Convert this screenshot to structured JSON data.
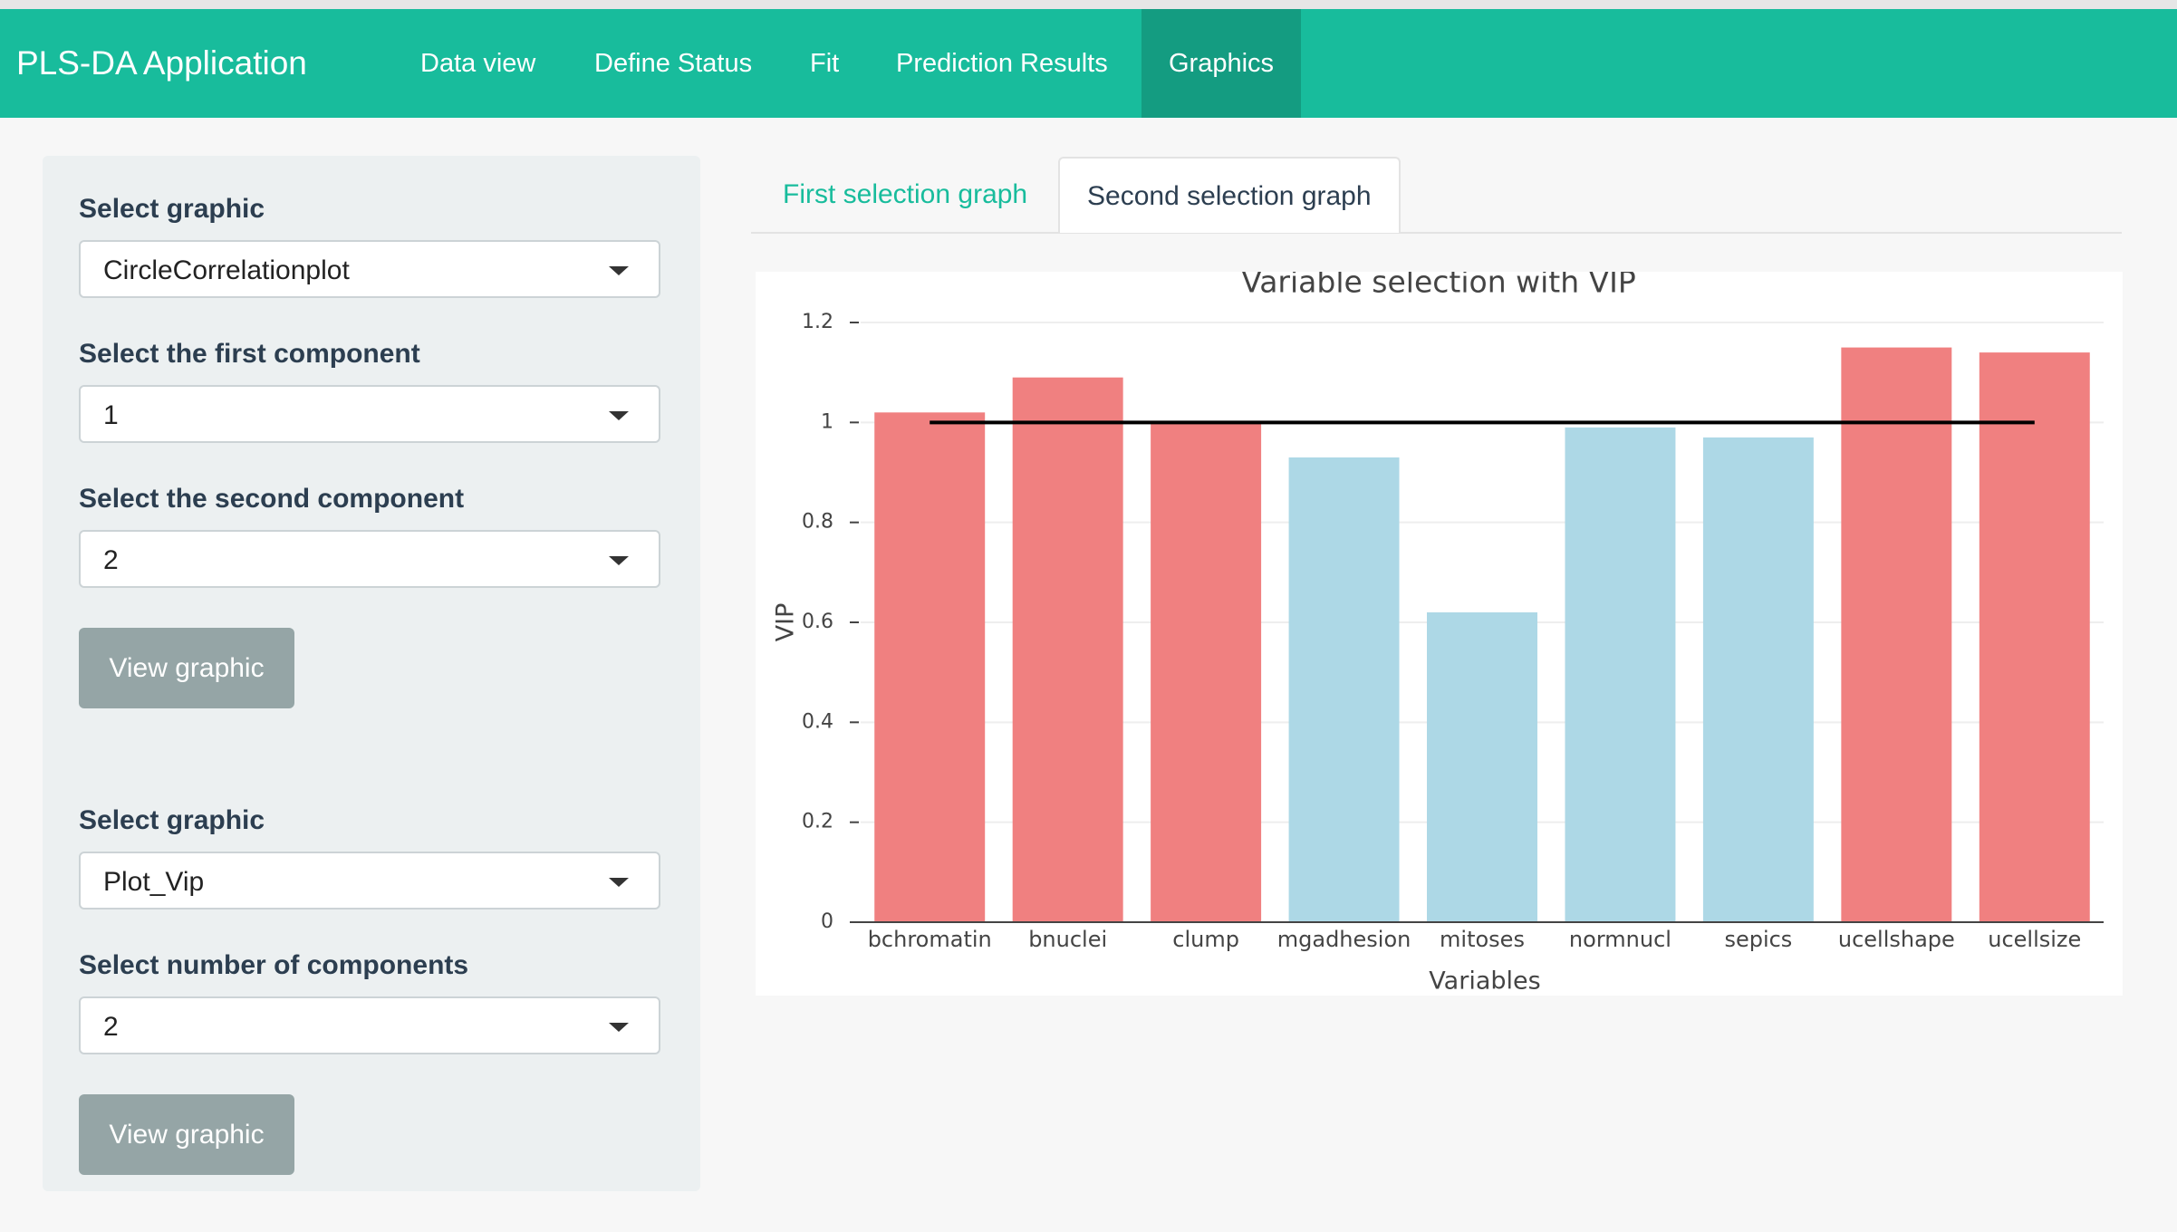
{
  "navbar": {
    "brand": "PLS-DA Application",
    "items": [
      "Data view",
      "Define Status",
      "Fit",
      "Prediction Results",
      "Graphics"
    ],
    "active_index": 4
  },
  "sidebar": {
    "panels": [
      {
        "fields": [
          {
            "label": "Select graphic",
            "value": "CircleCorrelationplot"
          },
          {
            "label": "Select the first component",
            "value": "1"
          },
          {
            "label": "Select the second component",
            "value": "2"
          }
        ],
        "button": "View graphic"
      },
      {
        "fields": [
          {
            "label": "Select graphic",
            "value": "Plot_Vip"
          },
          {
            "label": "Select number of components",
            "value": "2"
          }
        ],
        "button": "View graphic"
      }
    ]
  },
  "tabs": {
    "items": [
      "First selection graph",
      "Second selection graph"
    ],
    "active_index": 1
  },
  "chart_data": {
    "type": "bar",
    "title": "Variable selection with VIP",
    "xlabel": "Variables",
    "ylabel": "VIP",
    "categories": [
      "bchromatin",
      "bnuclei",
      "clump",
      "mgadhesion",
      "mitoses",
      "normnucl",
      "sepics",
      "ucellshape",
      "ucellsize"
    ],
    "values": [
      1.02,
      1.09,
      1.0,
      0.93,
      0.62,
      0.99,
      0.97,
      1.15,
      1.14
    ],
    "colors": [
      "#f08080",
      "#f08080",
      "#f08080",
      "#add8e6",
      "#add8e6",
      "#add8e6",
      "#add8e6",
      "#f08080",
      "#f08080"
    ],
    "reference_line": 1,
    "reference_color": "#000000",
    "ylim": [
      0,
      1.2
    ],
    "yticks": [
      0,
      0.2,
      0.4,
      0.6,
      0.8,
      1,
      1.2
    ],
    "grid": true
  }
}
